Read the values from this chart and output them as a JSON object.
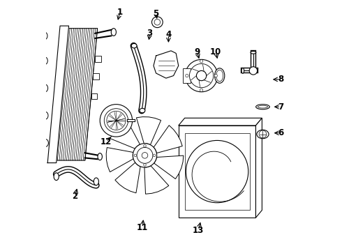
{
  "background_color": "#ffffff",
  "line_color": "#000000",
  "figsize": [
    4.9,
    3.6
  ],
  "dpi": 100,
  "label_fontsize": 8.5,
  "labels": {
    "1": [
      0.295,
      0.955,
      0.285,
      0.915
    ],
    "2": [
      0.115,
      0.215,
      0.125,
      0.255
    ],
    "3": [
      0.415,
      0.87,
      0.41,
      0.835
    ],
    "4": [
      0.49,
      0.865,
      0.49,
      0.825
    ],
    "5": [
      0.44,
      0.95,
      0.445,
      0.92
    ],
    "6": [
      0.94,
      0.47,
      0.905,
      0.47
    ],
    "7": [
      0.94,
      0.575,
      0.905,
      0.575
    ],
    "8": [
      0.94,
      0.685,
      0.9,
      0.685
    ],
    "9": [
      0.605,
      0.795,
      0.615,
      0.76
    ],
    "10": [
      0.68,
      0.795,
      0.688,
      0.76
    ],
    "11": [
      0.385,
      0.09,
      0.39,
      0.13
    ],
    "12": [
      0.24,
      0.435,
      0.265,
      0.46
    ],
    "13": [
      0.61,
      0.08,
      0.62,
      0.12
    ]
  }
}
